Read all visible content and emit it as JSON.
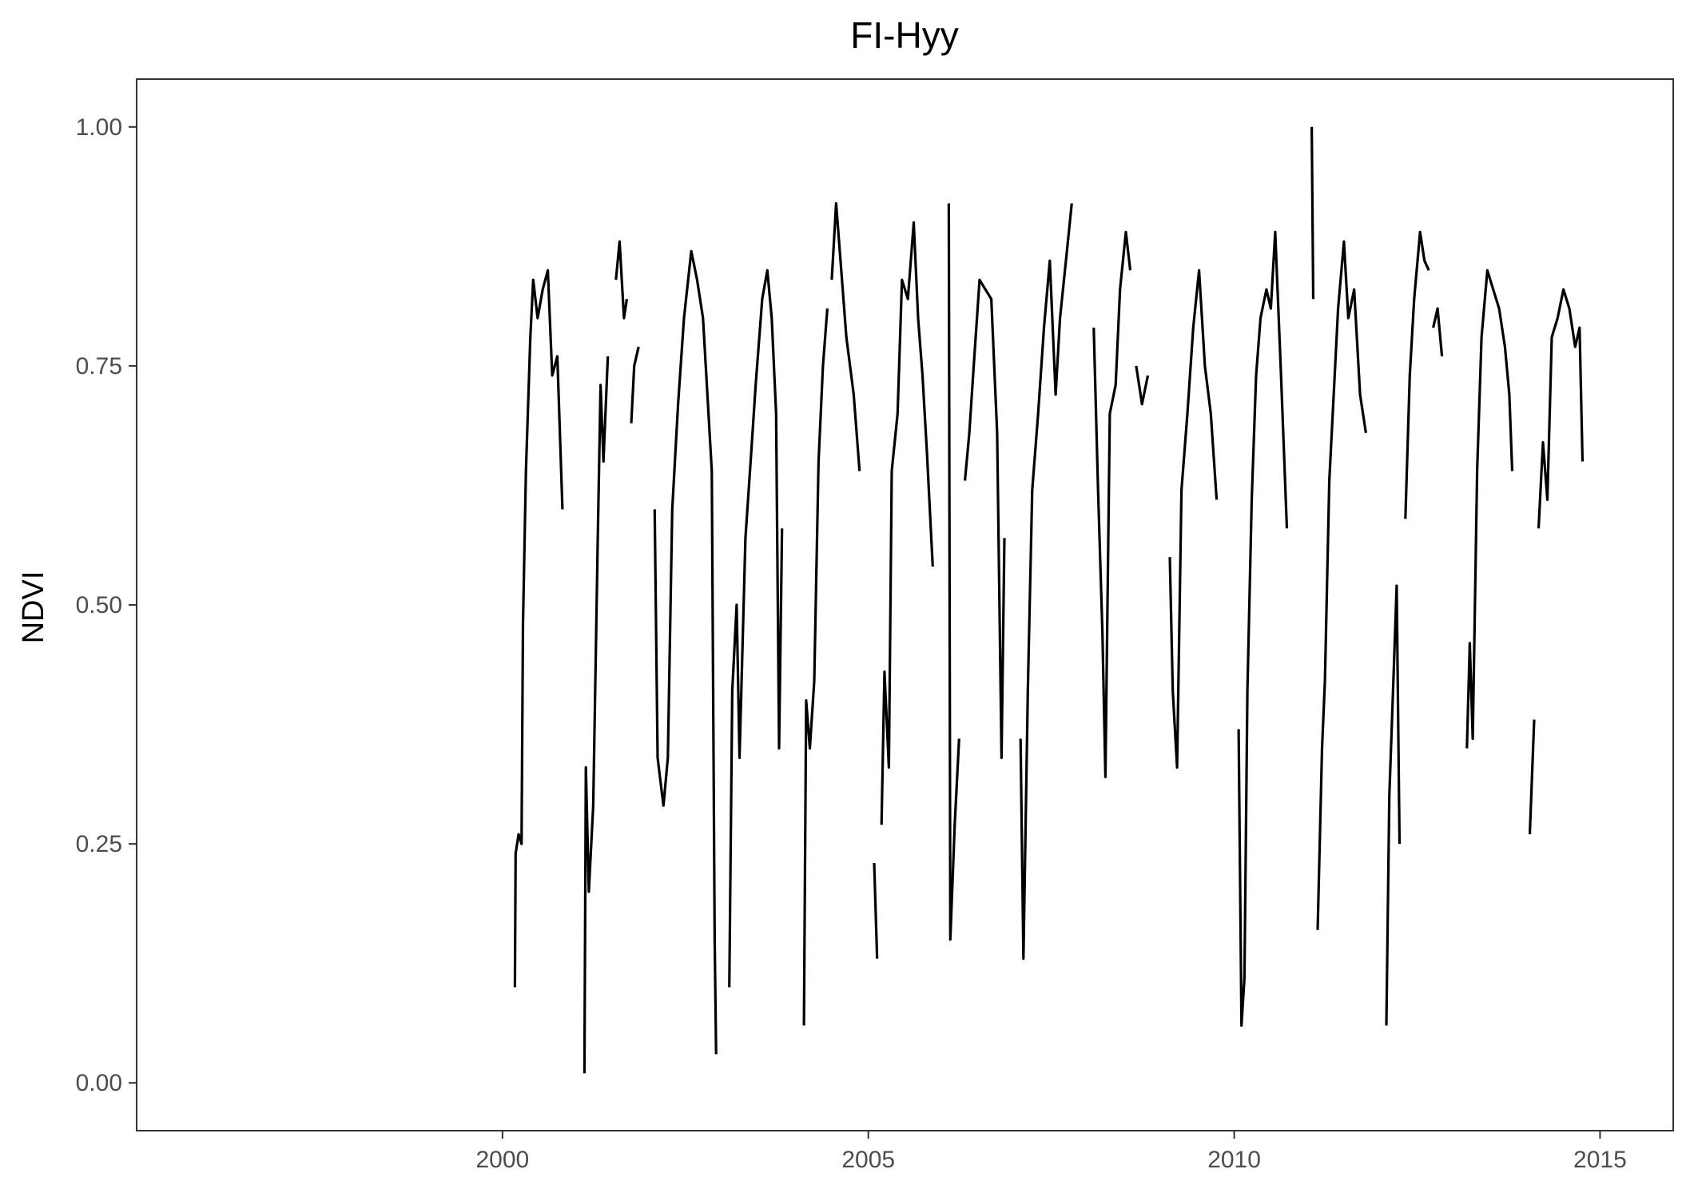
{
  "chart_data": {
    "type": "line",
    "title": "FI-Hyy",
    "xlabel": "",
    "ylabel": "NDVI",
    "xlim": [
      1995.0,
      2016.0
    ],
    "ylim": [
      -0.05,
      1.05
    ],
    "x_ticks": [
      2000,
      2005,
      2010,
      2015
    ],
    "x_tick_labels": [
      "2000",
      "2005",
      "2010",
      "2015"
    ],
    "y_ticks": [
      0.0,
      0.25,
      0.5,
      0.75,
      1.0
    ],
    "y_tick_labels": [
      "0.00",
      "0.25",
      "0.50",
      "0.75",
      "1.00"
    ],
    "grid": false,
    "legend": "none",
    "line_color": "#000000",
    "series": [
      {
        "segments": [
          [
            [
              2000.17,
              0.1
            ],
            [
              2000.18,
              0.24
            ],
            [
              2000.22,
              0.26
            ],
            [
              2000.26,
              0.25
            ],
            [
              2000.28,
              0.48
            ],
            [
              2000.32,
              0.64
            ],
            [
              2000.38,
              0.78
            ],
            [
              2000.42,
              0.84
            ],
            [
              2000.48,
              0.8
            ],
            [
              2000.55,
              0.83
            ],
            [
              2000.62,
              0.85
            ],
            [
              2000.68,
              0.74
            ],
            [
              2000.75,
              0.76
            ],
            [
              2000.82,
              0.6
            ]
          ],
          [
            [
              2001.12,
              0.01
            ],
            [
              2001.14,
              0.33
            ],
            [
              2001.18,
              0.2
            ],
            [
              2001.24,
              0.29
            ],
            [
              2001.3,
              0.56
            ],
            [
              2001.34,
              0.73
            ],
            [
              2001.38,
              0.65
            ],
            [
              2001.44,
              0.76
            ]
          ],
          [
            [
              2001.55,
              0.84
            ],
            [
              2001.6,
              0.88
            ],
            [
              2001.66,
              0.8
            ],
            [
              2001.7,
              0.82
            ]
          ],
          [
            [
              2001.76,
              0.69
            ],
            [
              2001.8,
              0.75
            ],
            [
              2001.86,
              0.77
            ]
          ],
          [
            [
              2002.08,
              0.6
            ],
            [
              2002.12,
              0.34
            ],
            [
              2002.2,
              0.29
            ],
            [
              2002.26,
              0.34
            ],
            [
              2002.32,
              0.6
            ],
            [
              2002.4,
              0.71
            ],
            [
              2002.48,
              0.8
            ],
            [
              2002.58,
              0.87
            ],
            [
              2002.66,
              0.84
            ],
            [
              2002.74,
              0.8
            ],
            [
              2002.8,
              0.72
            ],
            [
              2002.86,
              0.64
            ],
            [
              2002.9,
              0.15
            ],
            [
              2002.92,
              0.03
            ]
          ],
          [
            [
              2003.1,
              0.1
            ],
            [
              2003.14,
              0.41
            ],
            [
              2003.2,
              0.5
            ],
            [
              2003.24,
              0.34
            ],
            [
              2003.32,
              0.57
            ],
            [
              2003.4,
              0.66
            ],
            [
              2003.46,
              0.73
            ],
            [
              2003.55,
              0.82
            ],
            [
              2003.62,
              0.85
            ],
            [
              2003.68,
              0.8
            ],
            [
              2003.74,
              0.7
            ],
            [
              2003.78,
              0.35
            ],
            [
              2003.82,
              0.58
            ]
          ],
          [
            [
              2004.12,
              0.06
            ],
            [
              2004.15,
              0.4
            ],
            [
              2004.2,
              0.35
            ],
            [
              2004.26,
              0.42
            ],
            [
              2004.32,
              0.65
            ],
            [
              2004.38,
              0.75
            ],
            [
              2004.44,
              0.81
            ]
          ],
          [
            [
              2004.5,
              0.84
            ],
            [
              2004.56,
              0.92
            ],
            [
              2004.62,
              0.86
            ],
            [
              2004.7,
              0.78
            ],
            [
              2004.8,
              0.72
            ],
            [
              2004.88,
              0.64
            ]
          ],
          [
            [
              2005.08,
              0.23
            ],
            [
              2005.12,
              0.13
            ]
          ],
          [
            [
              2005.18,
              0.27
            ],
            [
              2005.22,
              0.43
            ],
            [
              2005.28,
              0.33
            ],
            [
              2005.32,
              0.64
            ],
            [
              2005.4,
              0.7
            ],
            [
              2005.46,
              0.84
            ],
            [
              2005.54,
              0.82
            ],
            [
              2005.62,
              0.9
            ],
            [
              2005.68,
              0.8
            ],
            [
              2005.74,
              0.74
            ],
            [
              2005.8,
              0.66
            ],
            [
              2005.88,
              0.54
            ]
          ],
          [
            [
              2006.1,
              0.92
            ],
            [
              2006.12,
              0.15
            ],
            [
              2006.18,
              0.27
            ],
            [
              2006.24,
              0.36
            ]
          ],
          [
            [
              2006.32,
              0.63
            ],
            [
              2006.38,
              0.68
            ],
            [
              2006.44,
              0.75
            ],
            [
              2006.52,
              0.84
            ],
            [
              2006.6,
              0.83
            ],
            [
              2006.68,
              0.82
            ],
            [
              2006.76,
              0.68
            ],
            [
              2006.82,
              0.34
            ],
            [
              2006.86,
              0.57
            ]
          ],
          [
            [
              2007.08,
              0.36
            ],
            [
              2007.12,
              0.13
            ],
            [
              2007.18,
              0.41
            ],
            [
              2007.24,
              0.62
            ],
            [
              2007.32,
              0.7
            ],
            [
              2007.4,
              0.79
            ],
            [
              2007.48,
              0.86
            ],
            [
              2007.56,
              0.72
            ],
            [
              2007.62,
              0.8
            ],
            [
              2007.7,
              0.86
            ],
            [
              2007.78,
              0.92
            ]
          ],
          [
            [
              2008.08,
              0.79
            ],
            [
              2008.14,
              0.62
            ],
            [
              2008.2,
              0.47
            ],
            [
              2008.24,
              0.32
            ],
            [
              2008.3,
              0.7
            ],
            [
              2008.38,
              0.73
            ],
            [
              2008.44,
              0.83
            ],
            [
              2008.52,
              0.89
            ],
            [
              2008.58,
              0.85
            ]
          ],
          [
            [
              2008.66,
              0.75
            ],
            [
              2008.74,
              0.71
            ],
            [
              2008.82,
              0.74
            ]
          ],
          [
            [
              2009.12,
              0.55
            ],
            [
              2009.16,
              0.41
            ],
            [
              2009.22,
              0.33
            ],
            [
              2009.28,
              0.62
            ],
            [
              2009.36,
              0.7
            ],
            [
              2009.44,
              0.79
            ],
            [
              2009.52,
              0.85
            ],
            [
              2009.6,
              0.75
            ],
            [
              2009.68,
              0.7
            ],
            [
              2009.76,
              0.61
            ]
          ],
          [
            [
              2010.06,
              0.37
            ],
            [
              2010.1,
              0.06
            ],
            [
              2010.14,
              0.11
            ],
            [
              2010.18,
              0.41
            ],
            [
              2010.24,
              0.61
            ],
            [
              2010.3,
              0.74
            ],
            [
              2010.36,
              0.8
            ],
            [
              2010.44,
              0.83
            ],
            [
              2010.5,
              0.81
            ],
            [
              2010.56,
              0.89
            ],
            [
              2010.64,
              0.74
            ],
            [
              2010.72,
              0.58
            ]
          ],
          [
            [
              2011.06,
              1.0
            ],
            [
              2011.08,
              0.82
            ]
          ],
          [
            [
              2011.14,
              0.16
            ],
            [
              2011.2,
              0.35
            ],
            [
              2011.24,
              0.42
            ],
            [
              2011.3,
              0.63
            ],
            [
              2011.36,
              0.72
            ],
            [
              2011.42,
              0.81
            ],
            [
              2011.5,
              0.88
            ],
            [
              2011.56,
              0.8
            ],
            [
              2011.64,
              0.83
            ],
            [
              2011.72,
              0.72
            ],
            [
              2011.8,
              0.68
            ]
          ],
          [
            [
              2012.08,
              0.06
            ],
            [
              2012.12,
              0.3
            ],
            [
              2012.18,
              0.43
            ],
            [
              2012.22,
              0.52
            ],
            [
              2012.26,
              0.25
            ]
          ],
          [
            [
              2012.34,
              0.59
            ],
            [
              2012.4,
              0.74
            ],
            [
              2012.46,
              0.82
            ],
            [
              2012.54,
              0.89
            ],
            [
              2012.6,
              0.86
            ],
            [
              2012.66,
              0.85
            ]
          ],
          [
            [
              2012.72,
              0.79
            ],
            [
              2012.78,
              0.81
            ],
            [
              2012.84,
              0.76
            ]
          ],
          [
            [
              2013.18,
              0.35
            ],
            [
              2013.22,
              0.46
            ],
            [
              2013.26,
              0.36
            ],
            [
              2013.32,
              0.64
            ],
            [
              2013.38,
              0.78
            ],
            [
              2013.46,
              0.85
            ],
            [
              2013.54,
              0.83
            ],
            [
              2013.62,
              0.81
            ],
            [
              2013.7,
              0.77
            ],
            [
              2013.76,
              0.72
            ],
            [
              2013.8,
              0.64
            ]
          ],
          [
            [
              2014.04,
              0.26
            ],
            [
              2014.1,
              0.38
            ]
          ],
          [
            [
              2014.16,
              0.58
            ],
            [
              2014.22,
              0.67
            ],
            [
              2014.28,
              0.61
            ],
            [
              2014.34,
              0.78
            ],
            [
              2014.42,
              0.8
            ],
            [
              2014.5,
              0.83
            ],
            [
              2014.58,
              0.81
            ],
            [
              2014.66,
              0.77
            ],
            [
              2014.72,
              0.79
            ],
            [
              2014.76,
              0.65
            ]
          ]
        ]
      }
    ]
  }
}
